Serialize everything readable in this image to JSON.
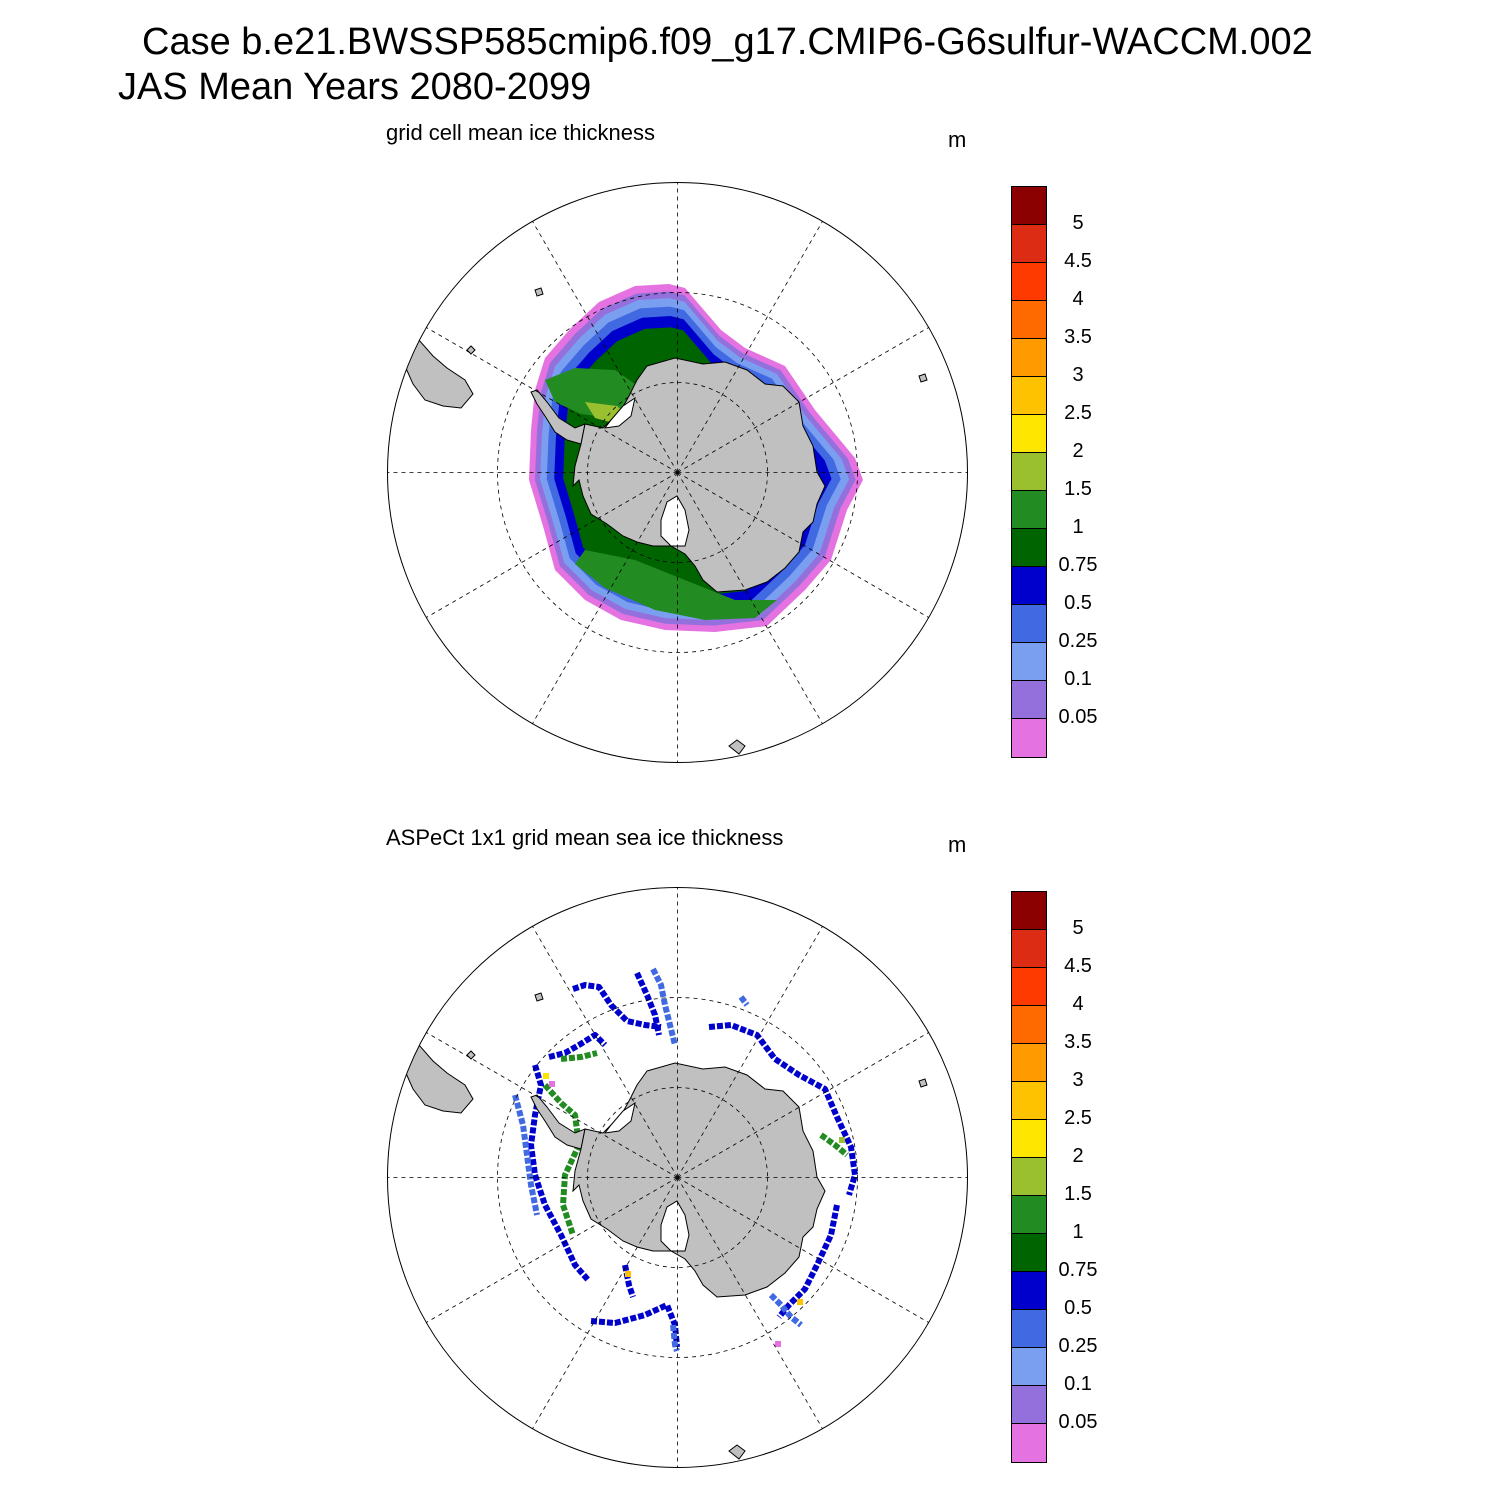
{
  "title": {
    "line1": "Case b.e21.BWSSP585cmip6.f09_g17.CMIP6-G6sulfur-WACCM.002",
    "line2": "JAS Mean   Years 2080-2099"
  },
  "panels": [
    {
      "subtitle": "grid cell mean ice thickness",
      "units": "m"
    },
    {
      "subtitle": "ASPeCt 1x1 grid mean sea ice thickness",
      "units": "m"
    }
  ],
  "colorbar": {
    "labels": [
      "5",
      "4.5",
      "4",
      "3.5",
      "3",
      "2.5",
      "2",
      "1.5",
      "1",
      "0.75",
      "0.5",
      "0.25",
      "0.1",
      "0.05"
    ],
    "colors": [
      "#8b0000",
      "#dc2c14",
      "#ff3a00",
      "#ff6a00",
      "#ff9a00",
      "#ffc200",
      "#ffe600",
      "#9abf2f",
      "#228b22",
      "#006400",
      "#0000cd",
      "#4169e1",
      "#7a9ff0",
      "#9370db",
      "#e472e0"
    ]
  },
  "colors": {
    "land": "#c0c0c0",
    "land_outline": "#000000",
    "grid": "#000000"
  }
}
